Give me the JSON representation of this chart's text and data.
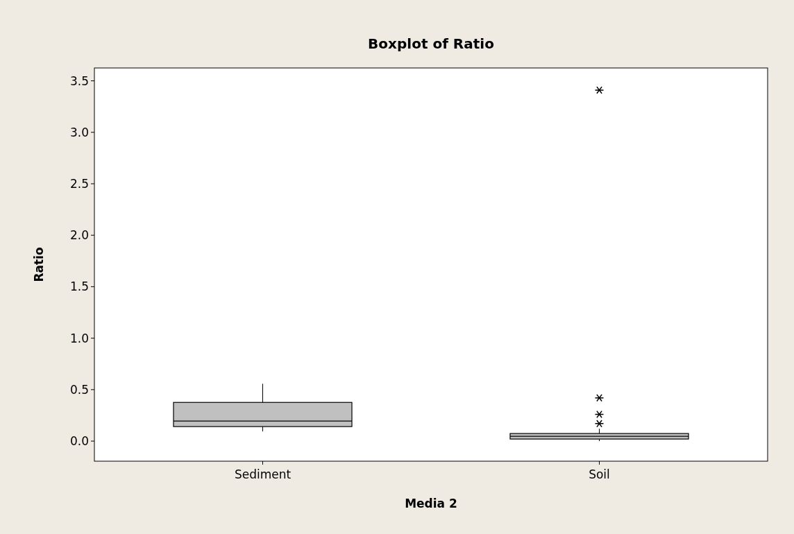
{
  "chart_data": {
    "type": "box",
    "title": "Boxplot of Ratio",
    "xlabel": "Media 2",
    "ylabel": "Ratio",
    "categories": [
      "Sediment",
      "Soil"
    ],
    "boxes": [
      {
        "low": 0.094,
        "q1": 0.141,
        "median": 0.195,
        "q3": 0.376,
        "high": 0.557
      },
      {
        "low": 0.0,
        "q1": 0.02,
        "median": 0.047,
        "q3": 0.074,
        "high": 0.12,
        "outliers": [
          0.17,
          0.26,
          0.42,
          3.41
        ]
      }
    ],
    "color": "#c0c0c0",
    "ylim": [
      -0.195,
      3.625
    ],
    "yticks": [
      {
        "value": 0,
        "label": "0.0"
      },
      {
        "value": 0.5,
        "label": "0.5"
      },
      {
        "value": 1,
        "label": "1.0"
      },
      {
        "value": 1.5,
        "label": "1.5"
      },
      {
        "value": 2,
        "label": "2.0"
      },
      {
        "value": 2.5,
        "label": "2.5"
      },
      {
        "value": 3,
        "label": "3.0"
      },
      {
        "value": 3.5,
        "label": "3.5"
      }
    ],
    "marker": "star",
    "grid": false
  }
}
